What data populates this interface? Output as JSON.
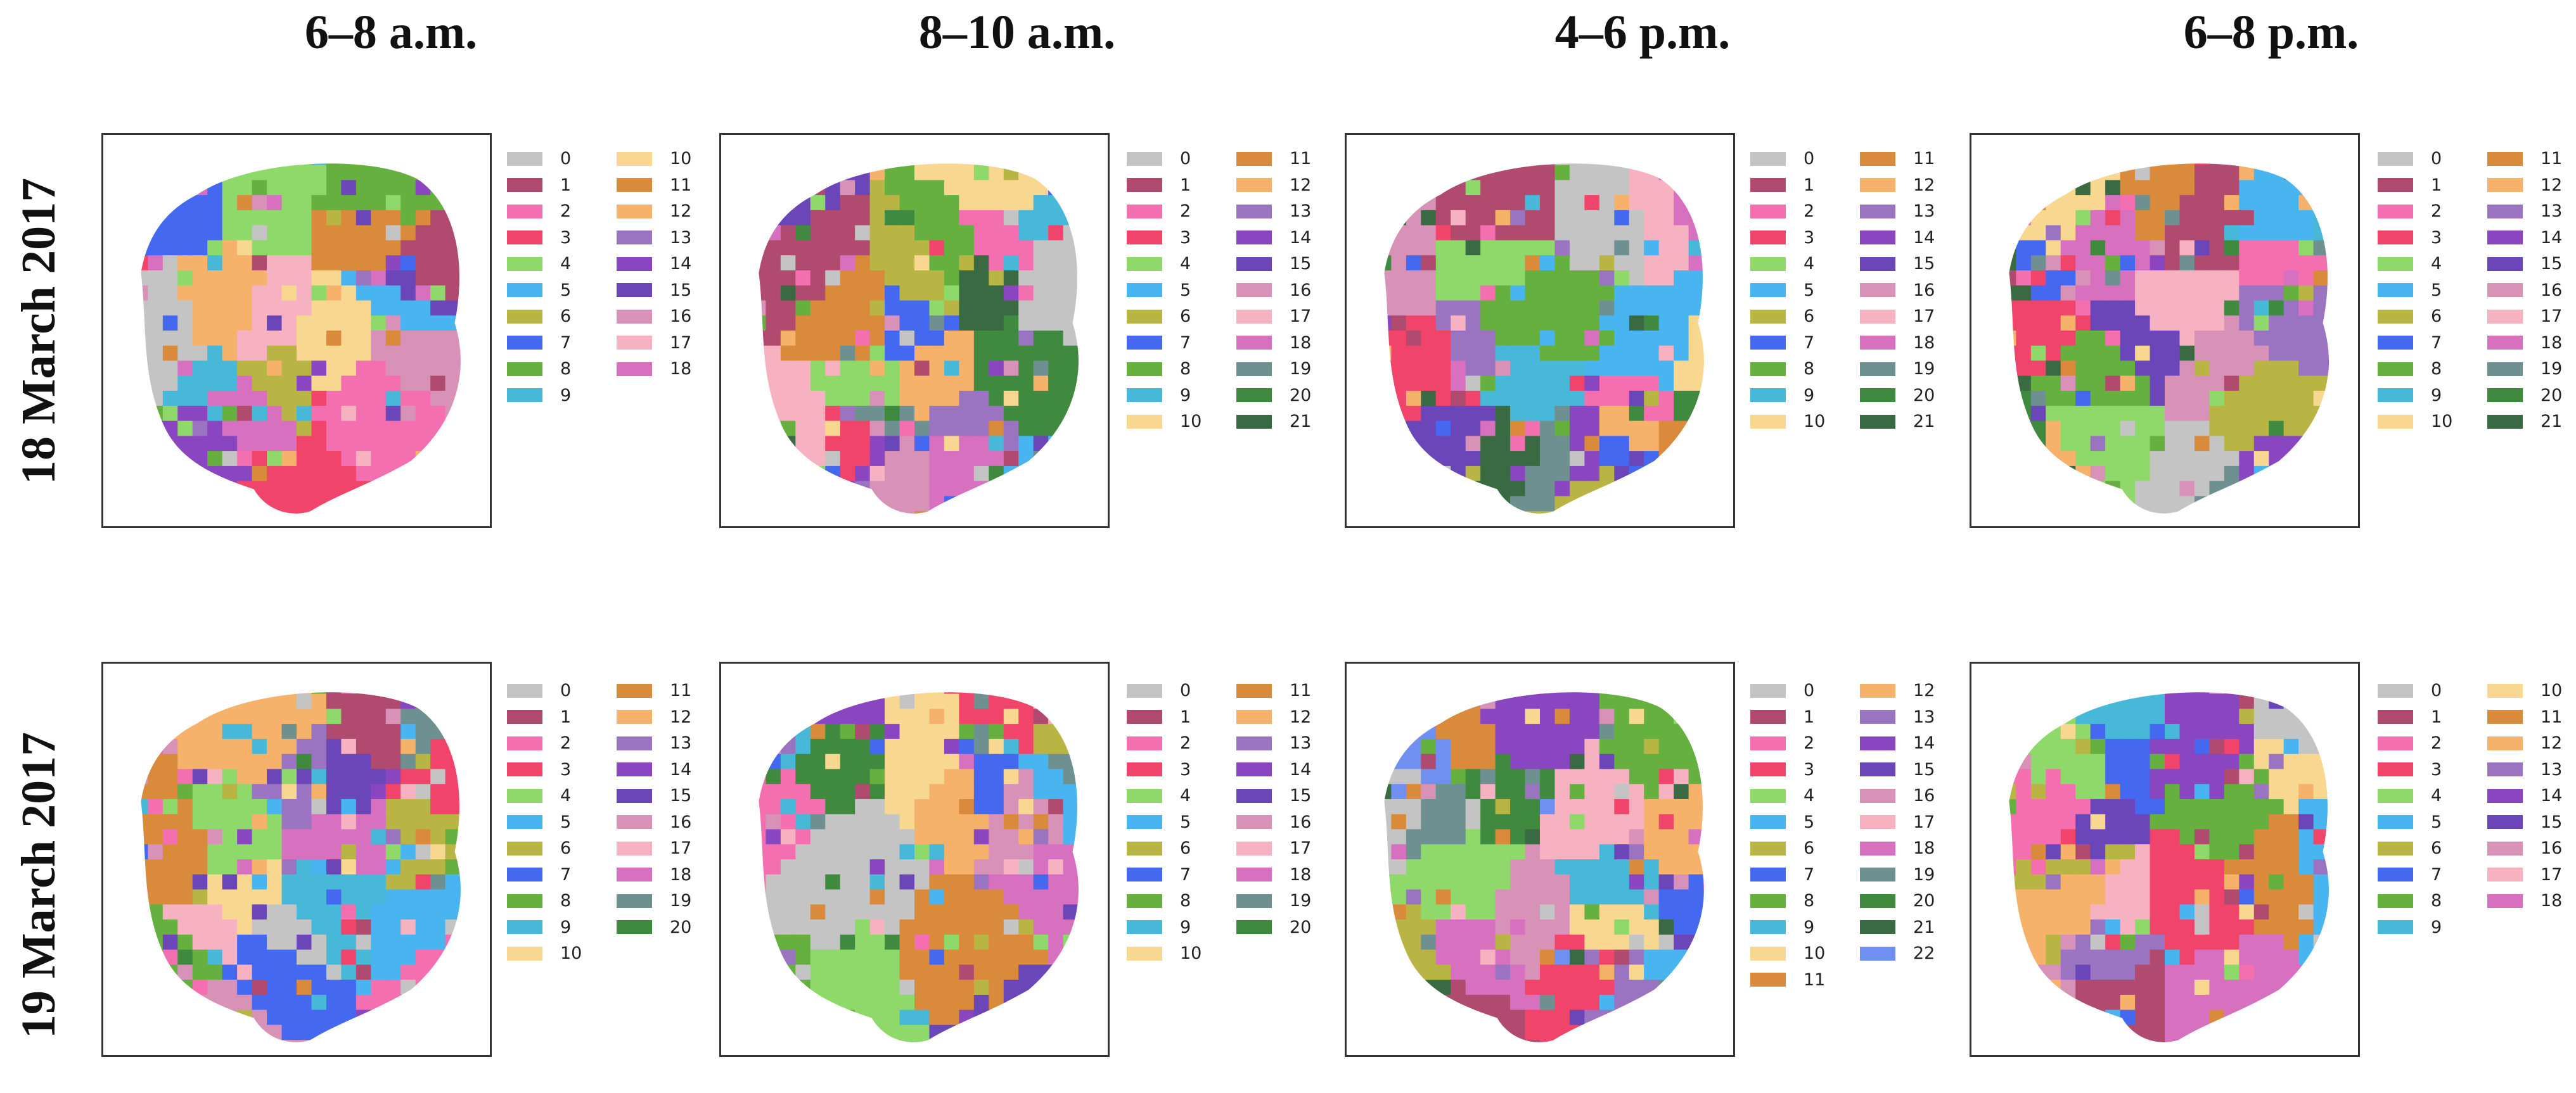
{
  "column_titles": [
    "6–8 a.m.",
    "8–10 a.m.",
    "4–6 p.m.",
    "6–8 p.m."
  ],
  "row_titles": [
    "18 March 2017",
    "19 March 2017"
  ],
  "palette": [
    "#c4c4c4",
    "#b04a6e",
    "#f46fb0",
    "#f0446a",
    "#8fd86a",
    "#48b4f0",
    "#b8b544",
    "#4468f0",
    "#66b040",
    "#48b8d8",
    "#f8d890",
    "#d98a3a",
    "#f6b26b",
    "#9a74c0",
    "#8a46c0",
    "#6a46b8",
    "#d892b8",
    "#f6b2c0",
    "#d870c0",
    "#6f9090",
    "#3f8a3f",
    "#3a6a42",
    "#6f90f0"
  ],
  "panels": [
    {
      "row": 0,
      "col": 0,
      "legend_cols": [
        [
          0,
          1,
          2,
          3,
          4,
          5,
          6,
          7,
          8,
          9
        ],
        [
          10,
          11,
          12,
          13,
          14,
          15,
          16,
          17,
          18
        ]
      ]
    },
    {
      "row": 0,
      "col": 1,
      "legend_cols": [
        [
          0,
          1,
          2,
          3,
          4,
          5,
          6,
          7,
          8,
          9,
          10
        ],
        [
          11,
          12,
          13,
          14,
          15,
          16,
          17,
          18,
          19,
          20,
          21
        ]
      ]
    },
    {
      "row": 0,
      "col": 2,
      "legend_cols": [
        [
          0,
          1,
          2,
          3,
          4,
          5,
          6,
          7,
          8,
          9,
          10
        ],
        [
          11,
          12,
          13,
          14,
          15,
          16,
          17,
          18,
          19,
          20,
          21
        ]
      ]
    },
    {
      "row": 0,
      "col": 3,
      "legend_cols": [
        [
          0,
          1,
          2,
          3,
          4,
          5,
          6,
          7,
          8,
          9,
          10
        ],
        [
          11,
          12,
          13,
          14,
          15,
          16,
          17,
          18,
          19,
          20,
          21
        ]
      ]
    },
    {
      "row": 1,
      "col": 0,
      "legend_cols": [
        [
          0,
          1,
          2,
          3,
          4,
          5,
          6,
          7,
          8,
          9,
          10
        ],
        [
          11,
          12,
          13,
          14,
          15,
          16,
          17,
          18,
          19,
          20
        ]
      ]
    },
    {
      "row": 1,
      "col": 1,
      "legend_cols": [
        [
          0,
          1,
          2,
          3,
          4,
          5,
          6,
          7,
          8,
          9,
          10
        ],
        [
          11,
          12,
          13,
          14,
          15,
          16,
          17,
          18,
          19,
          20
        ]
      ]
    },
    {
      "row": 1,
      "col": 2,
      "legend_cols": [
        [
          0,
          1,
          2,
          3,
          4,
          5,
          6,
          7,
          8,
          9,
          10,
          11
        ],
        [
          12,
          13,
          14,
          15,
          16,
          17,
          18,
          19,
          20,
          21,
          22
        ]
      ]
    },
    {
      "row": 1,
      "col": 3,
      "legend_cols": [
        [
          0,
          1,
          2,
          3,
          4,
          5,
          6,
          7,
          8,
          9
        ],
        [
          10,
          11,
          12,
          13,
          14,
          15,
          16,
          17,
          18
        ]
      ]
    }
  ]
}
